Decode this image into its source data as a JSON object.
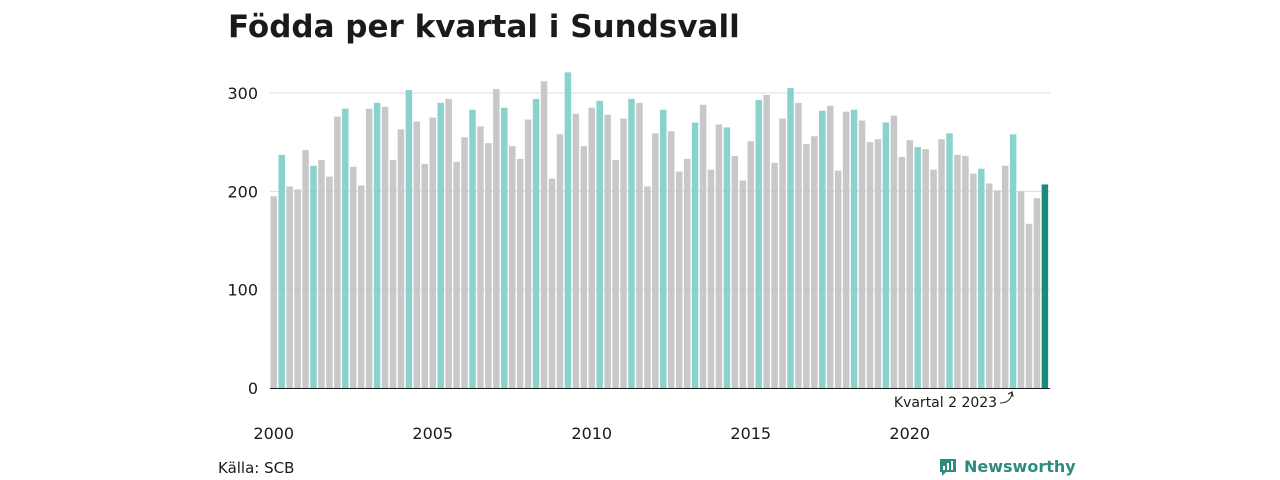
{
  "chart_data": {
    "type": "bar",
    "title": "Födda per kvartal i Sundsvall",
    "xlabel": "",
    "ylabel": "",
    "ylim": [
      0,
      330
    ],
    "yticks": [
      0,
      100,
      200,
      300
    ],
    "xticks": [
      "2000",
      "2005",
      "2010",
      "2015",
      "2020"
    ],
    "grid": true,
    "legend": "none",
    "highlight_rule": "Quarter 2 of each year shown in teal; latest quarter shown in dark teal",
    "categories": [
      "2000 K1",
      "2000 K2",
      "2000 K3",
      "2000 K4",
      "2001 K1",
      "2001 K2",
      "2001 K3",
      "2001 K4",
      "2002 K1",
      "2002 K2",
      "2002 K3",
      "2002 K4",
      "2003 K1",
      "2003 K2",
      "2003 K3",
      "2003 K4",
      "2004 K1",
      "2004 K2",
      "2004 K3",
      "2004 K4",
      "2005 K1",
      "2005 K2",
      "2005 K3",
      "2005 K4",
      "2006 K1",
      "2006 K2",
      "2006 K3",
      "2006 K4",
      "2007 K1",
      "2007 K2",
      "2007 K3",
      "2007 K4",
      "2008 K1",
      "2008 K2",
      "2008 K3",
      "2008 K4",
      "2009 K1",
      "2009 K2",
      "2009 K3",
      "2009 K4",
      "2010 K1",
      "2010 K2",
      "2010 K3",
      "2010 K4",
      "2011 K1",
      "2011 K2",
      "2011 K3",
      "2011 K4",
      "2012 K1",
      "2012 K2",
      "2012 K3",
      "2012 K4",
      "2013 K1",
      "2013 K2",
      "2013 K3",
      "2013 K4",
      "2014 K1",
      "2014 K2",
      "2014 K3",
      "2014 K4",
      "2015 K1",
      "2015 K2",
      "2015 K3",
      "2015 K4",
      "2016 K1",
      "2016 K2",
      "2016 K3",
      "2016 K4",
      "2017 K1",
      "2017 K2",
      "2017 K3",
      "2017 K4",
      "2018 K1",
      "2018 K2",
      "2018 K3",
      "2018 K4",
      "2019 K1",
      "2019 K2",
      "2019 K3",
      "2019 K4",
      "2020 K1",
      "2020 K2",
      "2020 K3",
      "2020 K4",
      "2021 K1",
      "2021 K2",
      "2021 K3",
      "2021 K4",
      "2022 K1",
      "2022 K2",
      "2022 K3",
      "2022 K4",
      "2023 K1",
      "2023 K2",
      "2023 K3",
      "2023 K4",
      "2024 K1",
      "2024 K2"
    ],
    "values": [
      195,
      237,
      205,
      202,
      242,
      226,
      232,
      215,
      276,
      284,
      225,
      206,
      284,
      290,
      286,
      232,
      263,
      303,
      271,
      228,
      275,
      290,
      294,
      230,
      255,
      283,
      266,
      249,
      304,
      285,
      246,
      233,
      273,
      294,
      312,
      213,
      258,
      321,
      279,
      246,
      285,
      292,
      278,
      232,
      274,
      294,
      290,
      205,
      259,
      283,
      261,
      220,
      233,
      270,
      288,
      222,
      268,
      265,
      236,
      211,
      251,
      293,
      298,
      229,
      274,
      305,
      290,
      248,
      256,
      282,
      287,
      221,
      281,
      283,
      272,
      250,
      253,
      270,
      277,
      235,
      252,
      245,
      243,
      222,
      253,
      259,
      237,
      236,
      218,
      223,
      208,
      201,
      226,
      258,
      200,
      167,
      193,
      207
    ],
    "annotation": {
      "label": "Kvartal 2 2023",
      "target_category": "2023 K2"
    },
    "colors": {
      "default": "#c8c8c8",
      "quarter2": "#89d3cc",
      "latest": "#1b8a7d",
      "grid": "#dddddd",
      "axis": "#1a1a1a"
    }
  },
  "footer": {
    "source": "Källa: SCB",
    "brand": "Newsworthy",
    "brand_icon": "newsworthy-logo-icon"
  }
}
